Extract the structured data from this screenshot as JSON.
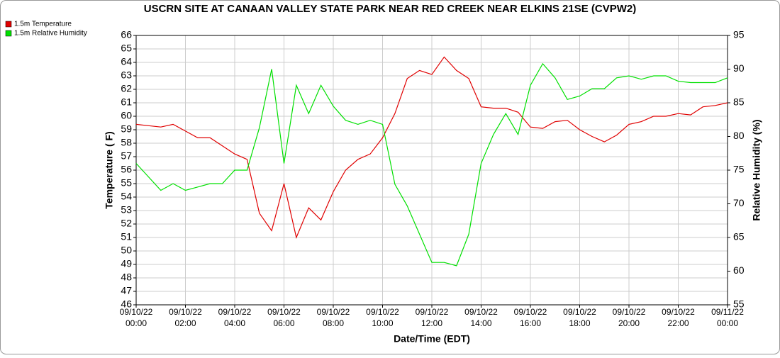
{
  "chart_data": {
    "type": "line",
    "title": "USCRN SITE AT CANAAN VALLEY STATE PARK NEAR RED CREEK NEAR ELKINS 21SE (CVPW2)",
    "x_label": "Date/Time (EDT)",
    "y_label": "Temperature ( F)",
    "y2_label": "Relative Humidity (%)",
    "x": [
      0,
      0.5,
      1,
      1.5,
      2,
      2.5,
      3,
      3.5,
      4,
      4.5,
      5,
      5.5,
      6,
      6.5,
      7,
      7.5,
      8,
      8.5,
      9,
      9.5,
      10,
      10.5,
      11,
      11.5,
      12,
      12.5,
      13,
      13.5,
      14,
      14.5,
      15,
      15.5,
      16,
      16.5,
      17,
      17.5,
      18,
      18.5,
      19,
      19.5,
      20,
      20.5,
      21,
      21.5,
      22,
      22.5,
      23,
      23.5,
      24
    ],
    "series": [
      {
        "name": "1.5m Temperature",
        "color": "#e00000",
        "axis": "y",
        "values": [
          59.4,
          59.3,
          59.2,
          59.4,
          58.9,
          58.4,
          58.4,
          57.8,
          57.2,
          56.8,
          52.8,
          51.5,
          55,
          51,
          53.2,
          52.3,
          54.4,
          56,
          56.8,
          57.2,
          58.4,
          60.2,
          62.8,
          63.4,
          63.1,
          64.4,
          63.4,
          62.8,
          60.7,
          60.6,
          60.6,
          60.3,
          59.2,
          59.1,
          59.6,
          59.7,
          59,
          58.5,
          58.1,
          58.6,
          59.4,
          59.6,
          60,
          60,
          60.2,
          60.1,
          60.7,
          60.8,
          61
        ]
      },
      {
        "name": "1.5m Relative Humidity",
        "color": "#00e000",
        "axis": "y2",
        "values": [
          76,
          74,
          72,
          73,
          72,
          72.5,
          73,
          73,
          75,
          75,
          81.3,
          90,
          76,
          87.6,
          83.4,
          87.6,
          84.5,
          82.4,
          81.8,
          82.4,
          81.8,
          72.9,
          69.7,
          65.5,
          61.3,
          61.3,
          60.8,
          65.5,
          76,
          80.3,
          83.4,
          80.3,
          87.6,
          90.8,
          88.7,
          85.5,
          86,
          87.1,
          87.1,
          88.7,
          89,
          88.5,
          89,
          89,
          88.2,
          88,
          88,
          88,
          88.7
        ]
      }
    ],
    "xlim": [
      0,
      24
    ],
    "xticks": [
      {
        "value": 0,
        "label": "09/10/22 00:00"
      },
      {
        "value": 2,
        "label": "09/10/22 02:00"
      },
      {
        "value": 4,
        "label": "09/10/22 04:00"
      },
      {
        "value": 6,
        "label": "09/10/22 06:00"
      },
      {
        "value": 8,
        "label": "09/10/22 08:00"
      },
      {
        "value": 10,
        "label": "09/10/22 10:00"
      },
      {
        "value": 12,
        "label": "09/10/22 12:00"
      },
      {
        "value": 14,
        "label": "09/10/22 14:00"
      },
      {
        "value": 16,
        "label": "09/10/22 16:00"
      },
      {
        "value": 18,
        "label": "09/10/22 18:00"
      },
      {
        "value": 20,
        "label": "09/10/22 20:00"
      },
      {
        "value": 22,
        "label": "09/10/22 22:00"
      },
      {
        "value": 24,
        "label": "09/11/22 00:00"
      }
    ],
    "ylim": [
      46,
      66
    ],
    "yticks": [
      46,
      47,
      48,
      49,
      50,
      51,
      52,
      53,
      54,
      55,
      56,
      57,
      58,
      59,
      60,
      61,
      62,
      63,
      64,
      65,
      66
    ],
    "y2lim": [
      55,
      95
    ],
    "y2ticks": [
      55,
      60,
      65,
      70,
      75,
      80,
      85,
      90,
      95
    ],
    "grid": true,
    "legend": "top-left"
  }
}
